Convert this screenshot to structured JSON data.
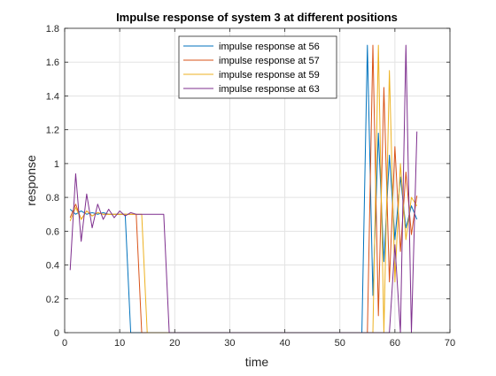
{
  "chart_data": {
    "type": "line",
    "title": "Impulse response of system 3 at different positions",
    "xlabel": "time",
    "ylabel": "response",
    "xlim": [
      0,
      70
    ],
    "ylim": [
      0,
      1.8
    ],
    "xticks": [
      0,
      10,
      20,
      30,
      40,
      50,
      60,
      70
    ],
    "yticks": [
      0,
      0.2,
      0.4,
      0.6,
      0.8,
      1,
      1.2,
      1.4,
      1.6,
      1.8
    ],
    "xtick_labels": [
      "0",
      "10",
      "20",
      "30",
      "40",
      "50",
      "60",
      "70"
    ],
    "ytick_labels": [
      "0",
      "0.2",
      "0.4",
      "0.6",
      "0.8",
      "1",
      "1.2",
      "1.4",
      "1.6",
      "1.8"
    ],
    "grid": true,
    "legend_position": "top-center",
    "series": [
      {
        "name": "impulse response at 56",
        "color": "#0072BD",
        "points": [
          [
            1,
            0.73
          ],
          [
            2,
            0.7
          ],
          [
            3,
            0.72
          ],
          [
            4,
            0.7
          ],
          [
            5,
            0.71
          ],
          [
            6,
            0.7
          ],
          [
            7,
            0.71
          ],
          [
            8,
            0.7
          ],
          [
            9,
            0.7
          ],
          [
            10,
            0.7
          ],
          [
            11,
            0.7
          ],
          [
            12,
            0.0
          ],
          [
            13,
            0.0
          ],
          [
            20,
            0.0
          ],
          [
            30,
            0.0
          ],
          [
            40,
            0.0
          ],
          [
            50,
            0.0
          ],
          [
            54,
            0.0
          ],
          [
            55,
            1.7
          ],
          [
            56,
            0.22
          ],
          [
            57,
            1.18
          ],
          [
            58,
            0.42
          ],
          [
            59,
            1.05
          ],
          [
            60,
            0.55
          ],
          [
            61,
            0.92
          ],
          [
            62,
            0.62
          ],
          [
            63,
            0.75
          ],
          [
            64,
            0.67
          ]
        ]
      },
      {
        "name": "impulse response at 57",
        "color": "#D95319",
        "points": [
          [
            1,
            0.68
          ],
          [
            2,
            0.76
          ],
          [
            3,
            0.67
          ],
          [
            4,
            0.72
          ],
          [
            5,
            0.69
          ],
          [
            6,
            0.71
          ],
          [
            7,
            0.7
          ],
          [
            8,
            0.7
          ],
          [
            9,
            0.7
          ],
          [
            10,
            0.7
          ],
          [
            11,
            0.7
          ],
          [
            12,
            0.7
          ],
          [
            13,
            0.7
          ],
          [
            14,
            0.0
          ],
          [
            20,
            0.0
          ],
          [
            30,
            0.0
          ],
          [
            40,
            0.0
          ],
          [
            50,
            0.0
          ],
          [
            55,
            0.0
          ],
          [
            56,
            1.7
          ],
          [
            57,
            0.1
          ],
          [
            58,
            1.45
          ],
          [
            59,
            0.3
          ],
          [
            60,
            1.1
          ],
          [
            61,
            0.48
          ],
          [
            62,
            0.95
          ],
          [
            63,
            0.58
          ],
          [
            64,
            0.81
          ]
        ]
      },
      {
        "name": "impulse response at 59",
        "color": "#EDB120",
        "points": [
          [
            1,
            0.66
          ],
          [
            2,
            0.74
          ],
          [
            3,
            0.67
          ],
          [
            4,
            0.72
          ],
          [
            5,
            0.69
          ],
          [
            6,
            0.71
          ],
          [
            7,
            0.7
          ],
          [
            8,
            0.7
          ],
          [
            9,
            0.7
          ],
          [
            10,
            0.7
          ],
          [
            11,
            0.7
          ],
          [
            12,
            0.7
          ],
          [
            13,
            0.7
          ],
          [
            14,
            0.7
          ],
          [
            15,
            0.0
          ],
          [
            20,
            0.0
          ],
          [
            30,
            0.0
          ],
          [
            40,
            0.0
          ],
          [
            50,
            0.0
          ],
          [
            56,
            0.0
          ],
          [
            57,
            1.7
          ],
          [
            58,
            0.0
          ],
          [
            59,
            1.55
          ],
          [
            60,
            0.3
          ],
          [
            61,
            1.0
          ],
          [
            62,
            0.55
          ],
          [
            63,
            0.8
          ],
          [
            64,
            0.75
          ]
        ]
      },
      {
        "name": "impulse response at 63",
        "color": "#7E2F8E",
        "points": [
          [
            1,
            0.37
          ],
          [
            2,
            0.94
          ],
          [
            3,
            0.54
          ],
          [
            4,
            0.82
          ],
          [
            5,
            0.62
          ],
          [
            6,
            0.76
          ],
          [
            7,
            0.67
          ],
          [
            8,
            0.73
          ],
          [
            9,
            0.68
          ],
          [
            10,
            0.72
          ],
          [
            11,
            0.69
          ],
          [
            12,
            0.71
          ],
          [
            13,
            0.7
          ],
          [
            14,
            0.7
          ],
          [
            15,
            0.7
          ],
          [
            16,
            0.7
          ],
          [
            17,
            0.7
          ],
          [
            18,
            0.7
          ],
          [
            19,
            0.0
          ],
          [
            20,
            0.0
          ],
          [
            30,
            0.0
          ],
          [
            40,
            0.0
          ],
          [
            50,
            0.0
          ],
          [
            58,
            0.0
          ],
          [
            59,
            0.0
          ],
          [
            60,
            0.52
          ],
          [
            61,
            0.0
          ],
          [
            62,
            1.7
          ],
          [
            63,
            0.0
          ],
          [
            64,
            1.19
          ]
        ]
      }
    ]
  }
}
